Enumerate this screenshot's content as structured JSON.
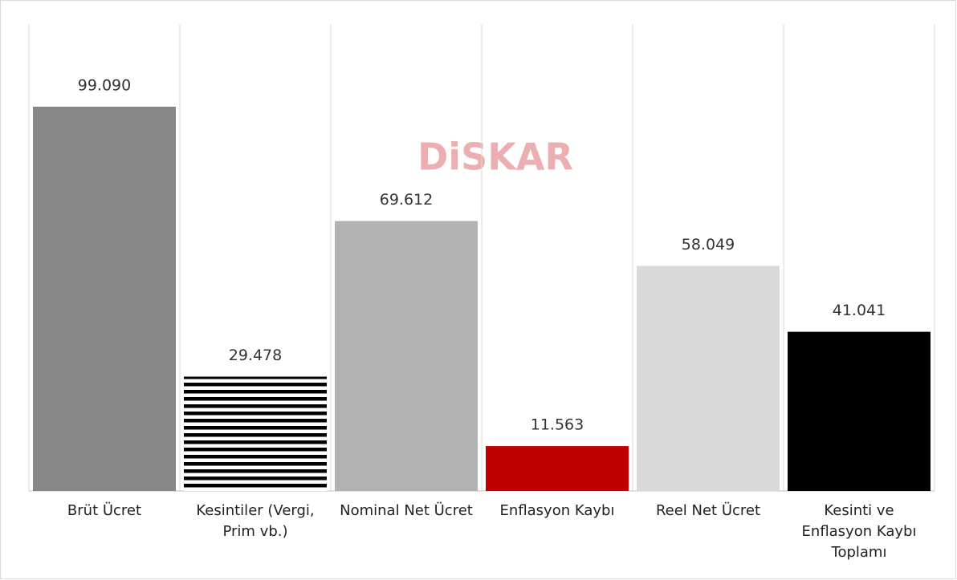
{
  "chart_data": {
    "type": "bar",
    "watermark": "DiSKAR",
    "categories": [
      "Brüt Ücret",
      "Kesintiler (Vergi, Prim vb.)",
      "Nominal Net Ücret",
      "Enflasyon Kaybı",
      "Reel Net Ücret",
      "Kesinti ve Enflasyon Kaybı Toplamı"
    ],
    "values": [
      99090,
      29478,
      69612,
      11563,
      58049,
      41041
    ],
    "value_labels": [
      "99.090",
      "29.478",
      "69.612",
      "11.563",
      "58.049",
      "41.041"
    ],
    "colors": [
      "#878787",
      "#000000",
      "#b2b2b2",
      "#c00000",
      "#d9d9d9",
      "#000000"
    ],
    "hatch": [
      false,
      true,
      false,
      false,
      false,
      false
    ]
  }
}
